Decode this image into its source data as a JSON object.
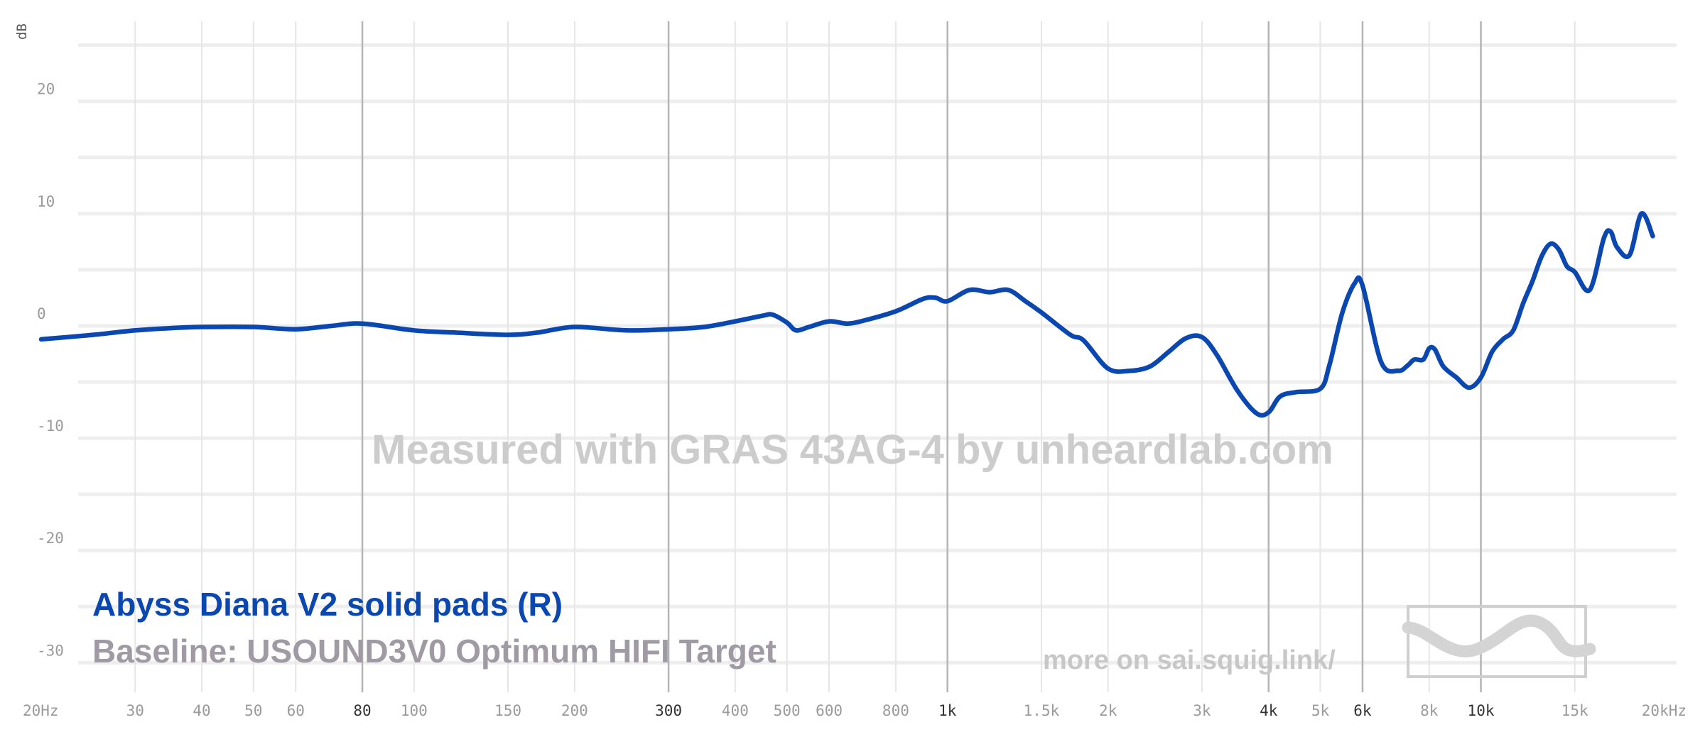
{
  "chart_data": {
    "type": "line",
    "ylabel": "dB",
    "x_scale": "log",
    "xlim": [
      20,
      24000
    ],
    "ylim": [
      -32,
      27
    ],
    "grid": true,
    "y_ticks": [
      {
        "value": 20,
        "label": "20"
      },
      {
        "value": 10,
        "label": "10"
      },
      {
        "value": 0,
        "label": "0"
      },
      {
        "value": -10,
        "label": "-10"
      },
      {
        "value": -20,
        "label": "-20"
      },
      {
        "value": -30,
        "label": "-30"
      }
    ],
    "x_ticks": [
      {
        "value": 20,
        "label": "20Hz",
        "major": false
      },
      {
        "value": 30,
        "label": "30",
        "major": false
      },
      {
        "value": 40,
        "label": "40",
        "major": false
      },
      {
        "value": 50,
        "label": "50",
        "major": false
      },
      {
        "value": 60,
        "label": "60",
        "major": false
      },
      {
        "value": 80,
        "label": "80",
        "major": true
      },
      {
        "value": 100,
        "label": "100",
        "major": false
      },
      {
        "value": 150,
        "label": "150",
        "major": false
      },
      {
        "value": 200,
        "label": "200",
        "major": false
      },
      {
        "value": 300,
        "label": "300",
        "major": true
      },
      {
        "value": 400,
        "label": "400",
        "major": false
      },
      {
        "value": 500,
        "label": "500",
        "major": false
      },
      {
        "value": 600,
        "label": "600",
        "major": false
      },
      {
        "value": 800,
        "label": "800",
        "major": false
      },
      {
        "value": 1000,
        "label": "1k",
        "major": true
      },
      {
        "value": 1500,
        "label": "1.5k",
        "major": false
      },
      {
        "value": 2000,
        "label": "2k",
        "major": false
      },
      {
        "value": 3000,
        "label": "3k",
        "major": false
      },
      {
        "value": 4000,
        "label": "4k",
        "major": true
      },
      {
        "value": 5000,
        "label": "5k",
        "major": false
      },
      {
        "value": 6000,
        "label": "6k",
        "major": true
      },
      {
        "value": 8000,
        "label": "8k",
        "major": false
      },
      {
        "value": 10000,
        "label": "10k",
        "major": true
      },
      {
        "value": 15000,
        "label": "15k",
        "major": false
      },
      {
        "value": 20000,
        "label": "20kHz",
        "major": false
      }
    ],
    "series": [
      {
        "name": "Abyss Diana V2 solid pads (R)",
        "color": "#0a47b0",
        "x": [
          20,
          25,
          30,
          35,
          40,
          50,
          60,
          70,
          80,
          100,
          120,
          150,
          170,
          200,
          250,
          300,
          350,
          400,
          450,
          470,
          500,
          520,
          550,
          600,
          650,
          700,
          800,
          900,
          950,
          1000,
          1100,
          1200,
          1300,
          1400,
          1500,
          1700,
          1800,
          2000,
          2200,
          2400,
          2600,
          2800,
          3000,
          3200,
          3500,
          3800,
          4000,
          4200,
          4500,
          5000,
          5200,
          5500,
          5800,
          6000,
          6500,
          7000,
          7300,
          7500,
          7800,
          8000,
          8200,
          8500,
          9000,
          9500,
          10000,
          10500,
          11000,
          11500,
          12000,
          12500,
          13000,
          13500,
          14000,
          14500,
          15000,
          16000,
          17000,
          17500,
          18000,
          19000,
          20000,
          21000
        ],
        "values": [
          -1.2,
          -0.8,
          -0.4,
          -0.2,
          -0.1,
          -0.1,
          -0.3,
          0.0,
          0.2,
          -0.4,
          -0.6,
          -0.8,
          -0.6,
          -0.1,
          -0.4,
          -0.3,
          -0.1,
          0.4,
          0.9,
          1.0,
          0.3,
          -0.4,
          -0.1,
          0.4,
          0.2,
          0.5,
          1.3,
          2.4,
          2.5,
          2.2,
          3.2,
          3.0,
          3.2,
          2.2,
          1.2,
          -0.8,
          -1.3,
          -3.8,
          -4.0,
          -3.6,
          -2.3,
          -1.1,
          -1.0,
          -2.6,
          -5.8,
          -7.8,
          -7.7,
          -6.3,
          -5.9,
          -5.6,
          -3.5,
          1.2,
          3.8,
          3.6,
          -3.2,
          -4.0,
          -3.5,
          -3.0,
          -3.0,
          -2.0,
          -2.1,
          -3.6,
          -4.6,
          -5.5,
          -4.6,
          -2.3,
          -1.2,
          -0.4,
          2.0,
          4.0,
          6.2,
          7.3,
          6.8,
          5.3,
          4.8,
          3.2,
          7.8,
          8.4,
          7.0,
          6.3,
          10.0,
          8.0
        ]
      }
    ],
    "legend": {
      "primary_label": "Abyss Diana V2 solid pads (R)",
      "baseline_label": "Baseline: USOUND3V0 Optimum HIFI Target"
    },
    "annotations": {
      "watermark": "Measured with GRAS 43AG-4 by unheardlab.com",
      "credit": "more on sai.squig.link/"
    }
  }
}
